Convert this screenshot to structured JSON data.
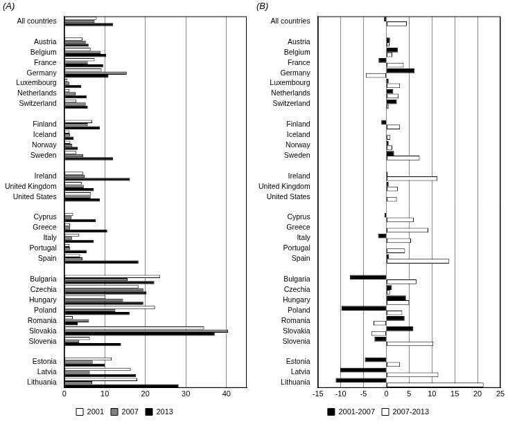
{
  "chart_data": [
    {
      "type": "bar",
      "title": "(A)",
      "orientation": "horizontal",
      "grid": true,
      "legend": "bottom",
      "categories": [
        "All countries",
        null,
        "Austria",
        "Belgium",
        "France",
        "Germany",
        "Luxembourg",
        "Netherlands",
        "Switzerland",
        null,
        "Finland",
        "Iceland",
        "Norway",
        "Sweden",
        null,
        "Ireland",
        "United Kingdom",
        "United States",
        null,
        "Cyprus",
        "Greece",
        "Italy",
        "Portugal",
        "Spain",
        null,
        "Bulgaria",
        "Czechia",
        "Hungary",
        "Poland",
        "Romania",
        "Slovakia",
        "Slovenia",
        null,
        "Estonia",
        "Latvia",
        "Lithuania"
      ],
      "series": [
        {
          "name": "2001",
          "color": "#ffffff",
          "values": [
            8.0,
            null,
            4.5,
            6.5,
            7.5,
            9.2,
            0.8,
            1.3,
            3.0,
            null,
            6.9,
            1.3,
            1.5,
            3.0,
            null,
            4.7,
            4.3,
            6.6,
            null,
            2.2,
            1.4,
            3.7,
            1.3,
            3.9,
            null,
            23.6,
            18.3,
            10.2,
            22.4,
            2.1,
            34.5,
            6.3,
            null,
            11.7,
            16.4,
            18.0
          ]
        },
        {
          "name": "2007",
          "color": "#808080",
          "values": [
            7.5,
            null,
            5.3,
            9.0,
            5.8,
            15.4,
            1.3,
            2.8,
            5.3,
            null,
            5.8,
            1.4,
            2.0,
            4.7,
            null,
            5.0,
            4.8,
            6.5,
            null,
            1.8,
            1.4,
            1.9,
            1.4,
            4.5,
            null,
            15.6,
            19.5,
            14.5,
            12.6,
            6.1,
            40.4,
            3.7,
            null,
            7.0,
            6.3,
            6.9
          ]
        },
        {
          "name": "2013",
          "color": "#000000",
          "values": [
            12.0,
            null,
            6.0,
            10.3,
            9.6,
            10.9,
            4.2,
            5.5,
            5.8,
            null,
            8.8,
            2.3,
            3.3,
            12.0,
            null,
            16.2,
            7.3,
            8.8,
            null,
            7.8,
            10.6,
            7.3,
            5.5,
            18.3,
            null,
            22.2,
            20.3,
            19.5,
            16.1,
            3.3,
            37.1,
            14.0,
            null,
            10.0,
            17.7,
            28.2
          ]
        }
      ],
      "xlim": [
        0,
        45
      ],
      "xticks": [
        0,
        10,
        20,
        30,
        40
      ]
    },
    {
      "type": "bar",
      "title": "(B)",
      "orientation": "horizontal",
      "grid": true,
      "legend": "bottom",
      "categories": [
        "All countries",
        null,
        "Austria",
        "Belgium",
        "France",
        "Germany",
        "Luxembourg",
        "Netherlands",
        "Switzerland",
        null,
        "Finland",
        "Iceland",
        "Norway",
        "Sweden",
        null,
        "Ireland",
        "United Kingdom",
        "United States",
        null,
        "Cyprus",
        "Greece",
        "Italy",
        "Portugal",
        "Spain",
        null,
        "Bulgaria",
        "Czechia",
        "Hungary",
        "Poland",
        "Romania",
        "Slovakia",
        "Slovenia",
        null,
        "Estonia",
        "Latvia",
        "Lithuania"
      ],
      "series": [
        {
          "name": "2001-2007",
          "color": "#000000",
          "values": [
            -0.5,
            null,
            0.8,
            2.5,
            -1.7,
            6.2,
            0.5,
            1.5,
            2.3,
            null,
            -1.1,
            0.1,
            0.5,
            1.7,
            null,
            0.3,
            0.5,
            -0.1,
            null,
            -0.4,
            0.0,
            -1.8,
            0.1,
            0.6,
            null,
            -8.0,
            1.2,
            4.3,
            -9.8,
            4.0,
            5.9,
            -2.6,
            null,
            -4.7,
            -10.1,
            -11.1
          ]
        },
        {
          "name": "2007-2013",
          "color": "#ffffff",
          "values": [
            4.5,
            null,
            0.7,
            1.3,
            3.8,
            -4.5,
            3.0,
            2.7,
            0.5,
            null,
            3.0,
            0.9,
            1.3,
            7.3,
            null,
            11.2,
            2.5,
            2.3,
            null,
            6.0,
            9.2,
            5.4,
            4.1,
            13.8,
            null,
            6.6,
            0.8,
            5.0,
            3.5,
            -2.8,
            -3.3,
            10.3,
            null,
            3.0,
            11.4,
            21.3
          ]
        }
      ],
      "xlim": [
        -15,
        25
      ],
      "xticks": [
        -15,
        -10,
        -5,
        0,
        5,
        10,
        15,
        20,
        25
      ]
    }
  ]
}
